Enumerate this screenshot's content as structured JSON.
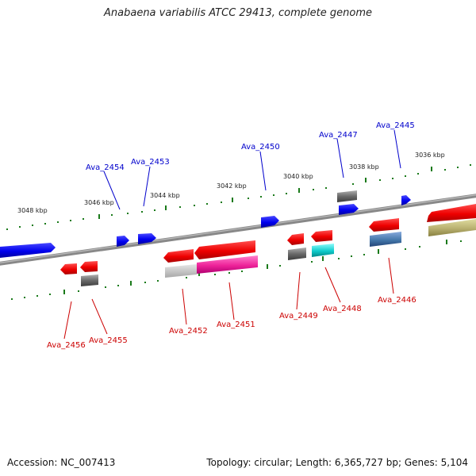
{
  "title": "Anabaena variabilis ATCC 29413, complete genome",
  "footer": {
    "accession": "Accession: NC_007413",
    "summary": "Topology: circular; Length: 6,365,727 bp; Genes: 5,104"
  },
  "colors": {
    "forward_gene": "#0000ee",
    "reverse_gene": "#ee0000",
    "forward_label": "#0000cc",
    "reverse_label": "#cc0000",
    "tick": "#1a7a1a",
    "backbone": "#808080"
  },
  "ticks": [
    "3048 kbp",
    "3046 kbp",
    "3044 kbp",
    "3042 kbp",
    "3040 kbp",
    "3038 kbp",
    "3036 kbp"
  ],
  "forward_labels": [
    "Ava_2454",
    "Ava_2453",
    "Ava_2450",
    "Ava_2447",
    "Ava_2445"
  ],
  "reverse_labels": [
    "Ava_2456",
    "Ava_2455",
    "Ava_2452",
    "Ava_2451",
    "Ava_2449",
    "Ava_2448",
    "Ava_2446"
  ]
}
